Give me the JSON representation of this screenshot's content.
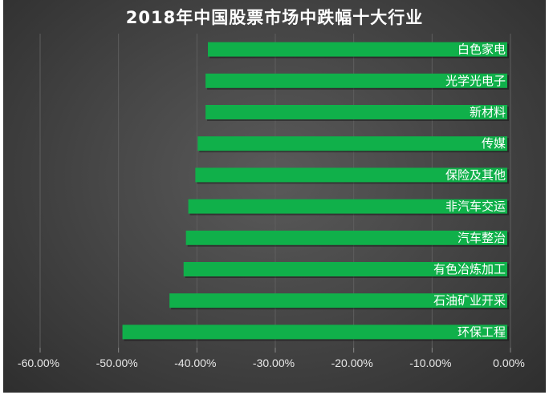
{
  "chart_data": {
    "type": "bar",
    "orientation": "horizontal",
    "title": "2018年中国股票市场中跌幅十大行业",
    "categories": [
      "白色家电",
      "光学光电子",
      "新材料",
      "传媒",
      "保险及其他",
      "非汽车交运",
      "汽车整治",
      "有色冶炼加工",
      "石油矿业开采",
      "环保工程"
    ],
    "values": [
      -38.6,
      -38.9,
      -38.9,
      -39.9,
      -40.2,
      -41.1,
      -41.4,
      -41.7,
      -43.5,
      -49.5
    ],
    "xlim": [
      -60,
      0
    ],
    "xticks": [
      "-60.00%",
      "-50.00%",
      "-40.00%",
      "-30.00%",
      "-20.00%",
      "-10.00%",
      "0.00%"
    ],
    "xtick_values": [
      -60,
      -50,
      -40,
      -30,
      -20,
      -10,
      0
    ],
    "xlabel": "",
    "ylabel": "",
    "grid": true,
    "legend": "none",
    "bar_color": "#10b04a"
  }
}
